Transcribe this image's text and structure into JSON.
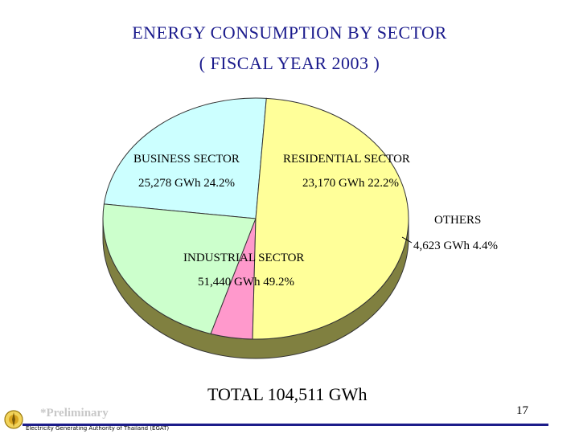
{
  "title_line1": "ENERGY  CONSUMPTION  BY  SECTOR",
  "title_line2": "( FISCAL  YEAR  2003 )",
  "chart_data": {
    "type": "pie",
    "title": "ENERGY CONSUMPTION BY SECTOR ( FISCAL YEAR 2003 )",
    "unit": "GWh",
    "slices": [
      {
        "name": "BUSINESS SECTOR",
        "value": 25278,
        "value_label": "25,278 GWh 24.2%",
        "percent": 24.2,
        "color": "#ccffff"
      },
      {
        "name": "RESIDENTIAL SECTOR",
        "value": 23170,
        "value_label": "23,170 GWh 22.2%",
        "percent": 22.2,
        "color": "#ccffcc"
      },
      {
        "name": "OTHERS",
        "value": 4623,
        "value_label": "4,623 GWh  4.4%",
        "percent": 4.4,
        "color": "#ff99cc"
      },
      {
        "name": "INDUSTRIAL SECTOR",
        "value": 51440,
        "value_label": "51,440 GWh 49.2%",
        "percent": 49.2,
        "color": "#ffff99"
      }
    ],
    "side_color": "#808040",
    "total_label": "TOTAL  104,511 GWh"
  },
  "footer": {
    "preliminary": "*Preliminary",
    "organization": "Electricity Generating Authority of Thailand (EGAT)",
    "page_number": "17",
    "rule_color": "#1c1c8a"
  }
}
